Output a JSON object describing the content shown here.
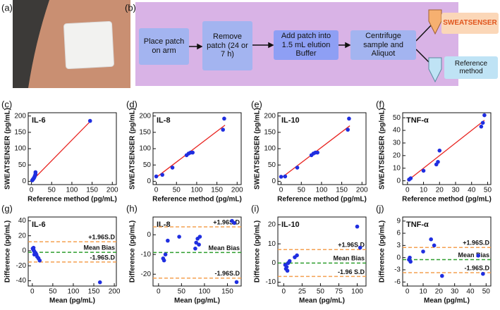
{
  "photo": {
    "label": "(a)"
  },
  "diagram": {
    "label": "(b)",
    "steps": [
      "Place patch on arm",
      "Remove patch (24 or 7 h)",
      "Add patch into 1.5 mL elution Buffer",
      "Centrifuge sample and Aliquot"
    ],
    "outputs": [
      "SWEATSENSER",
      "Reference method"
    ]
  },
  "chart_data": [
    {
      "type": "scatter",
      "label": "(c)",
      "title": "IL-6",
      "x_label": "Reference method (pg/mL)",
      "y_label": "SWEATSENSER (pg/mL)",
      "x": [
        2,
        3,
        4,
        5,
        6,
        7,
        8,
        9,
        10,
        10,
        145
      ],
      "values": [
        3,
        5,
        6,
        8,
        10,
        12,
        15,
        18,
        22,
        28,
        185
      ],
      "color": "#1f2ee0",
      "fit": {
        "x": [
          0,
          145
        ],
        "y": [
          0,
          183
        ],
        "color": "#e8231f"
      },
      "xlim": [
        -8,
        210
      ],
      "ylim": [
        -10,
        210
      ],
      "xticks": [
        0,
        50,
        100,
        150,
        200
      ],
      "yticks": [
        0,
        50,
        100,
        150,
        200
      ]
    },
    {
      "type": "scatter",
      "label": "(d)",
      "title": "IL-8",
      "x_label": "Reference method (pg/mL)",
      "y_label": "SWEATSENSER (pg/mL)",
      "x": [
        0,
        15,
        40,
        75,
        80,
        85,
        90,
        165,
        168
      ],
      "values": [
        15,
        20,
        42,
        80,
        85,
        88,
        88,
        158,
        192
      ],
      "color": "#1f2ee0",
      "fit": {
        "x": [
          0,
          170
        ],
        "y": [
          12,
          172
        ],
        "color": "#e8231f"
      },
      "xlim": [
        -8,
        210
      ],
      "ylim": [
        -10,
        210
      ],
      "xticks": [
        0,
        50,
        100,
        150,
        200
      ],
      "yticks": [
        0,
        50,
        100,
        150,
        200
      ]
    },
    {
      "type": "scatter",
      "label": "(e)",
      "title": "IL-10",
      "x_label": "Reference method (pg/mL)",
      "y_label": "SWEATSENSER (pg/mL)",
      "x": [
        0,
        10,
        40,
        75,
        80,
        85,
        90,
        165,
        168
      ],
      "values": [
        14,
        15,
        42,
        80,
        85,
        88,
        88,
        158,
        192
      ],
      "color": "#1f2ee0",
      "fit": {
        "x": [
          0,
          170
        ],
        "y": [
          10,
          170
        ],
        "color": "#e8231f"
      },
      "xlim": [
        -8,
        210
      ],
      "ylim": [
        -10,
        210
      ],
      "xticks": [
        0,
        50,
        100,
        150,
        200
      ],
      "yticks": [
        0,
        50,
        100,
        150,
        200
      ]
    },
    {
      "type": "scatter",
      "label": "(f)",
      "title": "TNF-α",
      "x_label": "Reference method (pg/mL)",
      "y_label": "SWEATSENSER (pg/mL)",
      "x": [
        1,
        2,
        10,
        18,
        19,
        20,
        46,
        47,
        48
      ],
      "values": [
        1,
        2,
        8,
        13,
        15,
        24,
        43,
        46,
        52
      ],
      "color": "#1f2ee0",
      "fit": {
        "x": [
          0,
          48
        ],
        "y": [
          0,
          48
        ],
        "color": "#e8231f"
      },
      "xlim": [
        -3,
        52
      ],
      "ylim": [
        -3,
        54
      ],
      "xticks": [
        0,
        10,
        20,
        30,
        40,
        50
      ],
      "yticks": [
        0,
        10,
        20,
        30,
        40,
        50
      ]
    },
    {
      "type": "scatter",
      "label": "(g)",
      "title": "IL-6",
      "x_label": "Mean (pg/mL)",
      "y_label": "Difference (pg/mL)",
      "x": [
        1,
        2,
        3,
        4,
        5,
        6,
        8,
        10,
        12,
        15,
        18,
        3,
        5,
        165
      ],
      "values": [
        3,
        2,
        1,
        0,
        -1,
        -2,
        -3,
        -5,
        -8,
        -10,
        -13,
        4,
        -5,
        -42
      ],
      "color": "#1f2ee0",
      "reference_lines": [
        {
          "value": 12,
          "label": "+1.96S.D",
          "color": "#f4a050"
        },
        {
          "value": -2,
          "label": "Mean Bias",
          "color": "#2e9e2e"
        },
        {
          "value": -15,
          "label": "-1.96S.D",
          "color": "#f4a050"
        }
      ],
      "xlim": [
        -10,
        205
      ],
      "ylim": [
        -47,
        45
      ],
      "xticks": [
        0,
        50,
        100,
        150,
        200
      ],
      "yticks": [
        -40,
        -20,
        0,
        20,
        40
      ]
    },
    {
      "type": "scatter",
      "label": "(h)",
      "title": "IL-8",
      "x_label": "Mean (pg/mL)",
      "y_label": "Difference (pg/mL)",
      "x": [
        10,
        12,
        15,
        20,
        45,
        80,
        82,
        85,
        88,
        90,
        160,
        165,
        170
      ],
      "values": [
        -12,
        -13,
        -10,
        -3,
        -1,
        -7,
        -4,
        -2,
        -5,
        -1,
        7,
        6,
        -24
      ],
      "color": "#1f2ee0",
      "reference_lines": [
        {
          "value": 4,
          "label": "+1.96S.D",
          "color": "#f4a050"
        },
        {
          "value": -9,
          "label": "Mean Bias",
          "color": "#2e9e2e"
        },
        {
          "value": -22,
          "label": "-1.96S.D",
          "color": "#f4a050"
        }
      ],
      "xlim": [
        -12,
        180
      ],
      "ylim": [
        -26,
        9
      ],
      "xticks": [
        0,
        50,
        100,
        150
      ],
      "yticks": [
        -20,
        -10,
        0
      ]
    },
    {
      "type": "scatter",
      "label": "(i)",
      "title": "IL-10",
      "x_label": "Mean (pg/mL)",
      "y_label": "Difference (pg/mL)",
      "x": [
        2,
        3,
        4,
        5,
        6,
        8,
        15,
        18,
        100,
        104
      ],
      "values": [
        -1,
        -3,
        -2,
        -4,
        0,
        1,
        3,
        4,
        19,
        8
      ],
      "color": "#1f2ee0",
      "reference_lines": [
        {
          "value": 7,
          "label": "+1.96S.D",
          "color": "#f4a050"
        },
        {
          "value": 0,
          "label": "Mean Bias",
          "color": "#2e9e2e"
        },
        {
          "value": -7,
          "label": "-1.96 S.D",
          "color": "#f4a050"
        }
      ],
      "xlim": [
        -8,
        112
      ],
      "ylim": [
        -12,
        24
      ],
      "xticks": [
        0,
        25,
        50,
        75,
        100
      ],
      "yticks": [
        -10,
        0,
        10,
        20
      ]
    },
    {
      "type": "scatter",
      "label": "(j)",
      "title": "TNF-α",
      "x_label": "Mean (pg/mL)",
      "y_label": "Difference (pg/mL)",
      "x": [
        1,
        1.5,
        2,
        10,
        15,
        17,
        22,
        45,
        48
      ],
      "values": [
        -0.5,
        0,
        -1,
        1.5,
        4.5,
        3,
        -4.5,
        0.5,
        -4
      ],
      "color": "#1f2ee0",
      "reference_lines": [
        {
          "value": 2.5,
          "label": "+1.96S.D",
          "color": "#f4a050"
        },
        {
          "value": -0.5,
          "label": "Mean Bias",
          "color": "#2e9e2e"
        },
        {
          "value": -3.7,
          "label": "-1.96S.D",
          "color": "#f4a050"
        }
      ],
      "xlim": [
        -3,
        53
      ],
      "ylim": [
        -7,
        10
      ],
      "xticks": [
        0,
        10,
        20,
        30,
        40,
        50
      ],
      "yticks": [
        -6,
        -3,
        0,
        3,
        6,
        9
      ]
    }
  ]
}
